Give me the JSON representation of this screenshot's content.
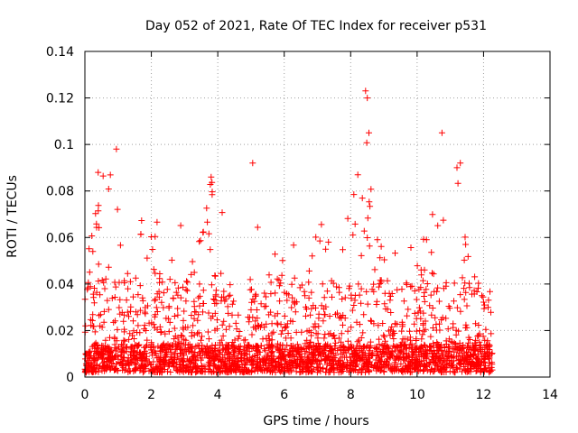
{
  "chart_data": {
    "type": "scatter",
    "title": "Day 052 of 2021, Rate Of TEC Index for receiver p531",
    "xlabel": "GPS time / hours",
    "ylabel": "ROTI / TECUs",
    "xlim": [
      0,
      14
    ],
    "ylim": [
      0,
      0.14
    ],
    "xticks": [
      0,
      2,
      4,
      6,
      8,
      10,
      12,
      14
    ],
    "yticks": [
      0,
      0.02,
      0.04,
      0.06,
      0.08,
      0.1,
      0.12,
      0.14
    ],
    "xtick_labels": [
      "0",
      "2",
      "4",
      "6",
      "8",
      "10",
      "12",
      "14"
    ],
    "ytick_labels": [
      "0",
      "0.02",
      "0.04",
      "0.06",
      "0.08",
      "0.1",
      "0.12",
      "0.14"
    ],
    "grid": true,
    "marker": "plus",
    "color": "#ff0000",
    "x_extent": [
      0.0,
      12.3
    ],
    "envelope": {
      "x": [
        0.0,
        0.3,
        0.5,
        0.7,
        0.9,
        1.1,
        1.3,
        1.5,
        1.7,
        1.9,
        2.1,
        2.3,
        2.5,
        2.7,
        2.9,
        3.1,
        3.3,
        3.5,
        3.7,
        3.9,
        4.1,
        4.3,
        4.6,
        4.9,
        5.1,
        5.3,
        5.5,
        5.7,
        5.9,
        6.1,
        6.3,
        6.5,
        6.7,
        6.9,
        7.1,
        7.3,
        7.5,
        7.7,
        7.9,
        8.1,
        8.3,
        8.5,
        8.7,
        8.9,
        9.1,
        9.3,
        9.5,
        9.7,
        9.9,
        10.1,
        10.3,
        10.5,
        10.7,
        10.9,
        11.1,
        11.3,
        11.5,
        11.7,
        11.9,
        12.1,
        12.3
      ],
      "y": [
        0.055,
        0.075,
        0.088,
        0.082,
        0.098,
        0.055,
        0.05,
        0.047,
        0.067,
        0.07,
        0.072,
        0.075,
        0.055,
        0.048,
        0.07,
        0.045,
        0.055,
        0.06,
        0.086,
        0.08,
        0.075,
        0.045,
        0.025,
        0.02,
        0.092,
        0.055,
        0.065,
        0.06,
        0.05,
        0.07,
        0.063,
        0.06,
        0.05,
        0.055,
        0.08,
        0.065,
        0.058,
        0.05,
        0.078,
        0.09,
        0.123,
        0.105,
        0.072,
        0.06,
        0.062,
        0.058,
        0.052,
        0.05,
        0.06,
        0.055,
        0.065,
        0.07,
        0.074,
        0.085,
        0.092,
        0.088,
        0.062,
        0.046,
        0.04,
        0.03,
        0.043
      ]
    },
    "highlights": [
      {
        "x": 5.05,
        "y": 0.092
      },
      {
        "x": 8.45,
        "y": 0.123
      },
      {
        "x": 8.5,
        "y": 0.12
      },
      {
        "x": 8.55,
        "y": 0.105
      },
      {
        "x": 10.75,
        "y": 0.105
      },
      {
        "x": 0.95,
        "y": 0.098
      },
      {
        "x": 0.4,
        "y": 0.088
      },
      {
        "x": 3.8,
        "y": 0.086
      },
      {
        "x": 11.3,
        "y": 0.092
      },
      {
        "x": 11.2,
        "y": 0.09
      }
    ]
  }
}
